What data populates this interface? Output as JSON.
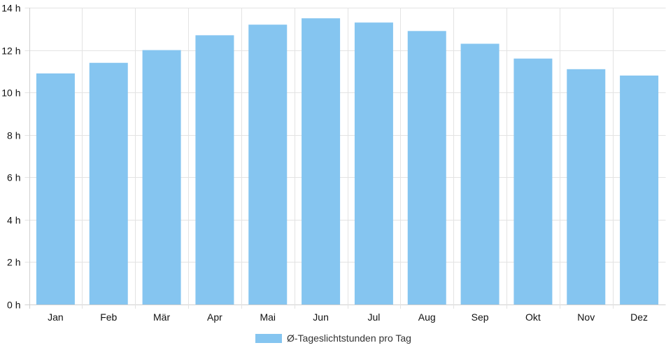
{
  "chart_data": {
    "type": "bar",
    "categories": [
      "Jan",
      "Feb",
      "Mär",
      "Apr",
      "Mai",
      "Jun",
      "Jul",
      "Aug",
      "Sep",
      "Okt",
      "Nov",
      "Dez"
    ],
    "series": [
      {
        "name": "Ø-Tageslichtstunden pro Tag",
        "values": [
          10.9,
          11.4,
          12.0,
          12.7,
          13.2,
          13.5,
          13.3,
          12.9,
          12.3,
          11.6,
          11.1,
          10.8
        ]
      }
    ],
    "y_ticks": [
      "0 h",
      "2 h",
      "4 h",
      "6 h",
      "8 h",
      "10 h",
      "12 h",
      "14 h"
    ],
    "ylim": [
      0,
      14
    ],
    "y_step": 2,
    "grid": true,
    "legend_position": "bottom-center",
    "colors": {
      "bar": "#85c5f0",
      "grid": "#e3e3e3",
      "axis": "#d0d0d0"
    }
  },
  "legend": {
    "label": "Ø-Tageslichtstunden pro Tag"
  }
}
